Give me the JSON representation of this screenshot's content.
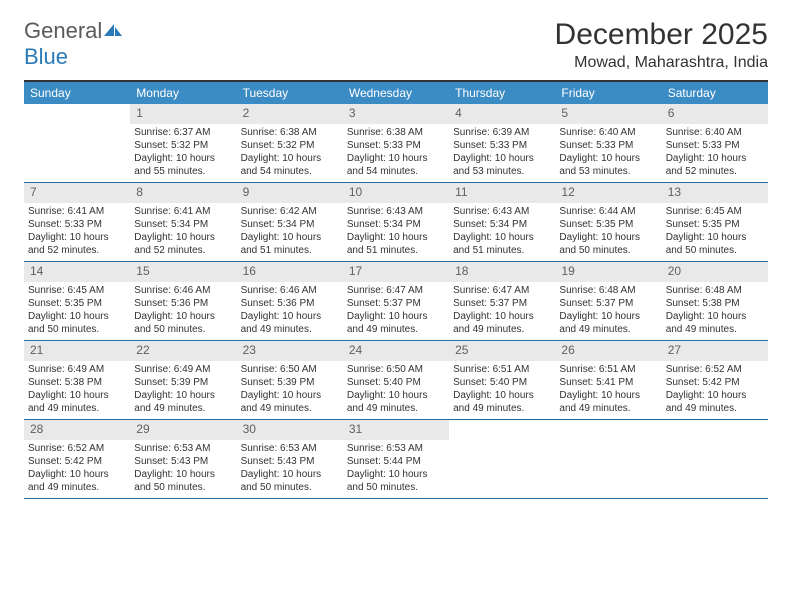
{
  "brand": {
    "name_a": "General",
    "name_b": "Blue"
  },
  "title": "December 2025",
  "location": "Mowad, Maharashtra, India",
  "style": {
    "header_bg": "#3b8bc4",
    "header_text": "#ffffff",
    "daynum_bg": "#e9e9e9",
    "daynum_text": "#606060",
    "row_border": "#2a6a9c",
    "top_border": "#333333",
    "body_text": "#333333",
    "title_fontsize": 30,
    "location_fontsize": 16,
    "weekday_fontsize": 12,
    "cell_fontsize": 10
  },
  "weekdays": [
    "Sunday",
    "Monday",
    "Tuesday",
    "Wednesday",
    "Thursday",
    "Friday",
    "Saturday"
  ],
  "weeks": [
    [
      {
        "n": "",
        "sr": "",
        "ss": "",
        "dl": ""
      },
      {
        "n": "1",
        "sr": "6:37 AM",
        "ss": "5:32 PM",
        "dl": "10 hours and 55 minutes."
      },
      {
        "n": "2",
        "sr": "6:38 AM",
        "ss": "5:32 PM",
        "dl": "10 hours and 54 minutes."
      },
      {
        "n": "3",
        "sr": "6:38 AM",
        "ss": "5:33 PM",
        "dl": "10 hours and 54 minutes."
      },
      {
        "n": "4",
        "sr": "6:39 AM",
        "ss": "5:33 PM",
        "dl": "10 hours and 53 minutes."
      },
      {
        "n": "5",
        "sr": "6:40 AM",
        "ss": "5:33 PM",
        "dl": "10 hours and 53 minutes."
      },
      {
        "n": "6",
        "sr": "6:40 AM",
        "ss": "5:33 PM",
        "dl": "10 hours and 52 minutes."
      }
    ],
    [
      {
        "n": "7",
        "sr": "6:41 AM",
        "ss": "5:33 PM",
        "dl": "10 hours and 52 minutes."
      },
      {
        "n": "8",
        "sr": "6:41 AM",
        "ss": "5:34 PM",
        "dl": "10 hours and 52 minutes."
      },
      {
        "n": "9",
        "sr": "6:42 AM",
        "ss": "5:34 PM",
        "dl": "10 hours and 51 minutes."
      },
      {
        "n": "10",
        "sr": "6:43 AM",
        "ss": "5:34 PM",
        "dl": "10 hours and 51 minutes."
      },
      {
        "n": "11",
        "sr": "6:43 AM",
        "ss": "5:34 PM",
        "dl": "10 hours and 51 minutes."
      },
      {
        "n": "12",
        "sr": "6:44 AM",
        "ss": "5:35 PM",
        "dl": "10 hours and 50 minutes."
      },
      {
        "n": "13",
        "sr": "6:45 AM",
        "ss": "5:35 PM",
        "dl": "10 hours and 50 minutes."
      }
    ],
    [
      {
        "n": "14",
        "sr": "6:45 AM",
        "ss": "5:35 PM",
        "dl": "10 hours and 50 minutes."
      },
      {
        "n": "15",
        "sr": "6:46 AM",
        "ss": "5:36 PM",
        "dl": "10 hours and 50 minutes."
      },
      {
        "n": "16",
        "sr": "6:46 AM",
        "ss": "5:36 PM",
        "dl": "10 hours and 49 minutes."
      },
      {
        "n": "17",
        "sr": "6:47 AM",
        "ss": "5:37 PM",
        "dl": "10 hours and 49 minutes."
      },
      {
        "n": "18",
        "sr": "6:47 AM",
        "ss": "5:37 PM",
        "dl": "10 hours and 49 minutes."
      },
      {
        "n": "19",
        "sr": "6:48 AM",
        "ss": "5:37 PM",
        "dl": "10 hours and 49 minutes."
      },
      {
        "n": "20",
        "sr": "6:48 AM",
        "ss": "5:38 PM",
        "dl": "10 hours and 49 minutes."
      }
    ],
    [
      {
        "n": "21",
        "sr": "6:49 AM",
        "ss": "5:38 PM",
        "dl": "10 hours and 49 minutes."
      },
      {
        "n": "22",
        "sr": "6:49 AM",
        "ss": "5:39 PM",
        "dl": "10 hours and 49 minutes."
      },
      {
        "n": "23",
        "sr": "6:50 AM",
        "ss": "5:39 PM",
        "dl": "10 hours and 49 minutes."
      },
      {
        "n": "24",
        "sr": "6:50 AM",
        "ss": "5:40 PM",
        "dl": "10 hours and 49 minutes."
      },
      {
        "n": "25",
        "sr": "6:51 AM",
        "ss": "5:40 PM",
        "dl": "10 hours and 49 minutes."
      },
      {
        "n": "26",
        "sr": "6:51 AM",
        "ss": "5:41 PM",
        "dl": "10 hours and 49 minutes."
      },
      {
        "n": "27",
        "sr": "6:52 AM",
        "ss": "5:42 PM",
        "dl": "10 hours and 49 minutes."
      }
    ],
    [
      {
        "n": "28",
        "sr": "6:52 AM",
        "ss": "5:42 PM",
        "dl": "10 hours and 49 minutes."
      },
      {
        "n": "29",
        "sr": "6:53 AM",
        "ss": "5:43 PM",
        "dl": "10 hours and 50 minutes."
      },
      {
        "n": "30",
        "sr": "6:53 AM",
        "ss": "5:43 PM",
        "dl": "10 hours and 50 minutes."
      },
      {
        "n": "31",
        "sr": "6:53 AM",
        "ss": "5:44 PM",
        "dl": "10 hours and 50 minutes."
      },
      {
        "n": "",
        "sr": "",
        "ss": "",
        "dl": ""
      },
      {
        "n": "",
        "sr": "",
        "ss": "",
        "dl": ""
      },
      {
        "n": "",
        "sr": "",
        "ss": "",
        "dl": ""
      }
    ]
  ],
  "labels": {
    "sunrise": "Sunrise:",
    "sunset": "Sunset:",
    "daylight": "Daylight:"
  }
}
